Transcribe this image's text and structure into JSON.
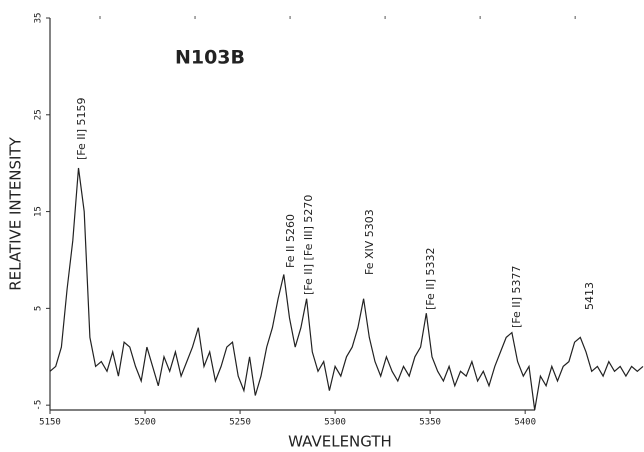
{
  "chart_data": {
    "type": "line",
    "title": "N103B",
    "x_label": "WAVELENGTH",
    "y_label": "RELATIVE INTENSITY",
    "annotations": [
      "[Fe II] 5159",
      "Fe II 5260",
      "[Fe II] [Fe III] 5270",
      "Fe XIV 5303",
      "[Fe II] 5332",
      "[Fe II] 5377",
      "5413"
    ],
    "xlim": [
      5150,
      5462
    ],
    "ylim": [
      -5.5,
      35
    ],
    "xticks": [
      5150,
      5200,
      5250,
      5300,
      5350,
      5400
    ],
    "yticks": [
      -5,
      5,
      15,
      25,
      35
    ],
    "grid": false,
    "x": [
      5150,
      5153,
      5156,
      5159,
      5162,
      5165,
      5168,
      5171,
      5174,
      5177,
      5180,
      5183,
      5186,
      5189,
      5192,
      5195,
      5198,
      5201,
      5204,
      5207,
      5210,
      5213,
      5216,
      5219,
      5222,
      5225,
      5228,
      5231,
      5234,
      5237,
      5240,
      5243,
      5246,
      5249,
      5252,
      5255,
      5258,
      5261,
      5264,
      5267,
      5270,
      5273,
      5276,
      5279,
      5282,
      5285,
      5288,
      5291,
      5294,
      5297,
      5300,
      5303,
      5306,
      5309,
      5312,
      5315,
      5318,
      5321,
      5324,
      5327,
      5330,
      5333,
      5336,
      5339,
      5342,
      5345,
      5348,
      5351,
      5354,
      5357,
      5360,
      5363,
      5366,
      5369,
      5372,
      5375,
      5378,
      5381,
      5384,
      5387,
      5390,
      5393,
      5396,
      5399,
      5402,
      5405,
      5408,
      5411,
      5414,
      5417,
      5420,
      5423,
      5426,
      5429,
      5432,
      5435,
      5438,
      5441,
      5444,
      5447,
      5450,
      5453,
      5456,
      5459,
      5462
    ],
    "series": [
      {
        "name": "N103B",
        "color": "#222222",
        "values": [
          -1.5,
          -1,
          1,
          7,
          12,
          19.5,
          15,
          2,
          -1,
          -0.5,
          -1.5,
          0.5,
          -2,
          1.5,
          1,
          -1,
          -2.5,
          1,
          -1,
          -3,
          0,
          -1.5,
          0.5,
          -2,
          -0.5,
          1,
          3,
          -1,
          0.5,
          -2.5,
          -1,
          1,
          1.5,
          -2,
          -3.5,
          0,
          -4,
          -2,
          1,
          3,
          6,
          8.5,
          4,
          1,
          3,
          6,
          0.5,
          -1.5,
          -0.5,
          -3.5,
          -1,
          -2,
          0,
          1,
          3,
          6,
          2,
          -0.5,
          -2,
          0,
          -1.5,
          -2.5,
          -1,
          -2,
          0,
          1,
          4.5,
          0,
          -1.5,
          -2.5,
          -1,
          -3,
          -1.5,
          -2,
          -0.5,
          -2.5,
          -1.5,
          -3,
          -1,
          0.5,
          2,
          2.5,
          -0.5,
          -2,
          -1,
          -5.5,
          -2,
          -3,
          -1,
          -2.5,
          -1,
          -0.5,
          1.5,
          2,
          0.5,
          -1.5,
          -1,
          -2,
          -0.5,
          -1.5,
          -1,
          -2,
          -1,
          -1.5,
          -1
        ]
      }
    ]
  }
}
